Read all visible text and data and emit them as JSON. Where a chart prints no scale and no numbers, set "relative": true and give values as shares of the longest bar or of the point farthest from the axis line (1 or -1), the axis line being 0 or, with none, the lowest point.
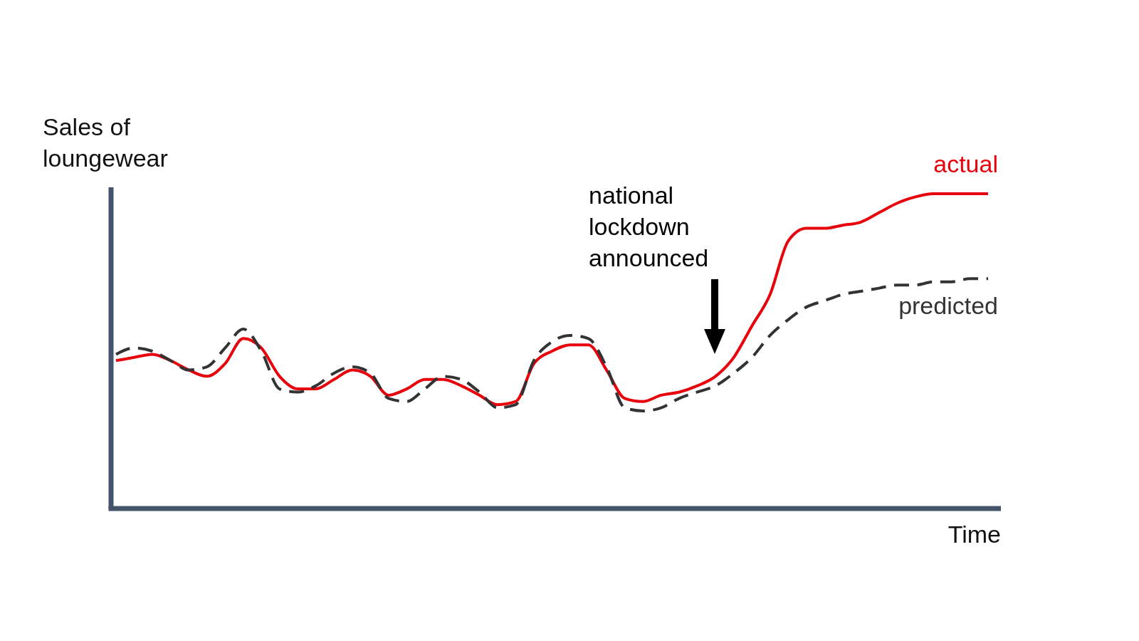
{
  "chart_data": {
    "type": "line",
    "relative": true,
    "xlabel": "Time",
    "ylabel": "Sales of loungewear",
    "annotations": [
      "national lockdown announced"
    ],
    "marker": "none",
    "categories": [
      null,
      null,
      null,
      null,
      null,
      null,
      null,
      null,
      null,
      null,
      null,
      null,
      null,
      null,
      null,
      null,
      null,
      null,
      null,
      null,
      null,
      null,
      null,
      null,
      null,
      null,
      null,
      null,
      null,
      null,
      null,
      null,
      null,
      null,
      null,
      null,
      null,
      null,
      null,
      null,
      null,
      null,
      null,
      null,
      null,
      null,
      null,
      null,
      null
    ],
    "series": [
      {
        "name": "actual",
        "color": "#e8000b",
        "line_style": "solid",
        "values": [
          0.47,
          0.48,
          0.49,
          0.47,
          0.44,
          0.42,
          0.46,
          0.54,
          0.51,
          0.42,
          0.38,
          0.38,
          0.41,
          0.44,
          0.42,
          0.36,
          0.38,
          0.41,
          0.41,
          0.39,
          0.36,
          0.33,
          0.34,
          0.46,
          0.5,
          0.52,
          0.52,
          0.44,
          0.35,
          0.34,
          0.36,
          0.37,
          0.39,
          0.42,
          0.48,
          0.58,
          0.68,
          0.85,
          0.89,
          0.89,
          0.9,
          0.91,
          0.94,
          0.97,
          0.99,
          1,
          1,
          1,
          1
        ]
      },
      {
        "name": "predicted",
        "color": "#333333",
        "line_style": "dashed",
        "values": [
          0.49,
          0.51,
          0.5,
          0.47,
          0.44,
          0.45,
          0.51,
          0.57,
          0.5,
          0.38,
          0.37,
          0.39,
          0.43,
          0.45,
          0.43,
          0.35,
          0.34,
          0.38,
          0.42,
          0.41,
          0.37,
          0.32,
          0.33,
          0.47,
          0.53,
          0.55,
          0.54,
          0.45,
          0.32,
          0.31,
          0.32,
          0.35,
          0.37,
          0.39,
          0.43,
          0.48,
          0.55,
          0.6,
          0.64,
          0.66,
          0.68,
          0.69,
          0.7,
          0.71,
          0.71,
          0.72,
          0.72,
          0.73,
          0.73
        ]
      }
    ]
  }
}
